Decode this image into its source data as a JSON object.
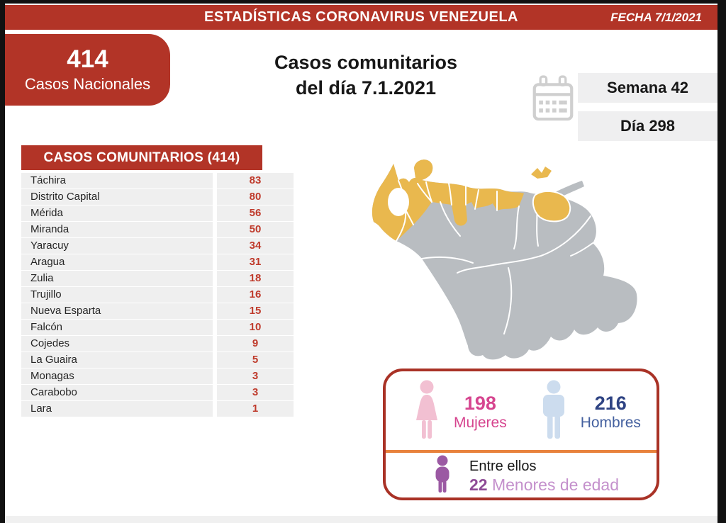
{
  "header": {
    "title": "ESTADÍSTICAS CORONAVIRUS VENEZUELA",
    "date_label": "FECHA 7/1/2021"
  },
  "national": {
    "value": "414",
    "label": "Casos Nacionales"
  },
  "main_title": {
    "line1": "Casos comunitarios",
    "line2": "del día 7.1.2021"
  },
  "period": {
    "week": "Semana 42",
    "day": "Día 298"
  },
  "table": {
    "header": "CASOS COMUNITARIOS (414)",
    "rows": [
      {
        "state": "Táchira",
        "cases": "83"
      },
      {
        "state": "Distrito Capital",
        "cases": "80"
      },
      {
        "state": "Mérida",
        "cases": "56"
      },
      {
        "state": "Miranda",
        "cases": "50"
      },
      {
        "state": "Yaracuy",
        "cases": "34"
      },
      {
        "state": "Aragua",
        "cases": "31"
      },
      {
        "state": "Zulia",
        "cases": "18"
      },
      {
        "state": "Trujillo",
        "cases": "16"
      },
      {
        "state": "Nueva Esparta",
        "cases": "15"
      },
      {
        "state": "Falcón",
        "cases": "10"
      },
      {
        "state": "Cojedes",
        "cases": "9"
      },
      {
        "state": "La Guaira",
        "cases": "5"
      },
      {
        "state": "Monagas",
        "cases": "3"
      },
      {
        "state": "Carabobo",
        "cases": "3"
      },
      {
        "state": "Lara",
        "cases": "1"
      }
    ]
  },
  "gender": {
    "women": {
      "value": "198",
      "label": "Mujeres"
    },
    "men": {
      "value": "216",
      "label": "Hombres"
    },
    "minors": {
      "intro": "Entre ellos",
      "value": "22",
      "label": " Menores de edad"
    }
  },
  "icons": {
    "calendar": "calendar-icon",
    "woman": "woman-icon",
    "man": "man-icon",
    "child": "child-icon",
    "map": "venezuela-map-highlighted-states"
  },
  "colors": {
    "accent_red": "#b23427",
    "value_red": "#bf3a2b",
    "row_gray": "#efefef",
    "map_gray": "#b9bdc1",
    "map_yellow": "#e9b84e",
    "pink": "#d6458f",
    "pink_icon": "#f2c0d2",
    "navy": "#2e4383",
    "blue": "#44609f",
    "blue_icon": "#ccdcee",
    "purple": "#9b59a3",
    "purple_light": "#c490cc",
    "orange_divider": "#e8823c",
    "box_border": "#a93226"
  },
  "chart_data": {
    "type": "table",
    "title": "CASOS COMUNITARIOS (414)",
    "categories": [
      "Táchira",
      "Distrito Capital",
      "Mérida",
      "Miranda",
      "Yaracuy",
      "Aragua",
      "Zulia",
      "Trujillo",
      "Nueva Esparta",
      "Falcón",
      "Cojedes",
      "La Guaira",
      "Monagas",
      "Carabobo",
      "Lara"
    ],
    "values": [
      83,
      80,
      56,
      50,
      34,
      31,
      18,
      16,
      15,
      10,
      9,
      5,
      3,
      3,
      1
    ],
    "total_national_cases": 414,
    "community_cases_date": "7.1.2021",
    "week": 42,
    "day": 298,
    "women": 198,
    "men": 216,
    "minors": 22,
    "highlighted_map_note": "states with cases shown in yellow on Venezuela map"
  }
}
